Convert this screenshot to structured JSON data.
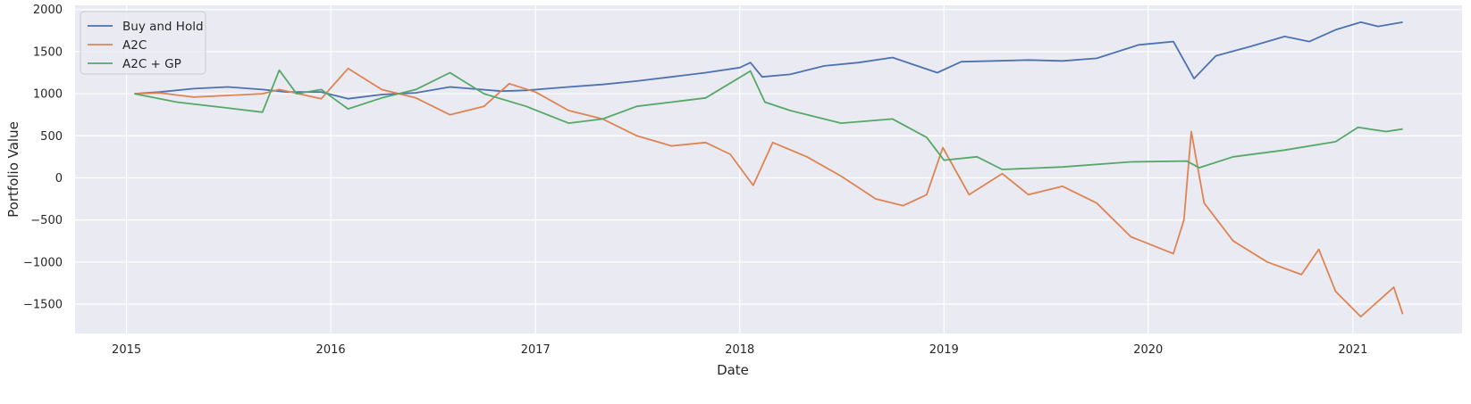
{
  "chart_data": {
    "type": "line",
    "title": "",
    "xlabel": "Date",
    "ylabel": "Portfolio Value",
    "xlim": [
      "2014-10-01",
      "2021-07-15"
    ],
    "ylim": [
      -1850,
      2050
    ],
    "x_ticks": [
      "2015",
      "2016",
      "2017",
      "2018",
      "2019",
      "2020",
      "2021"
    ],
    "y_ticks": [
      2000,
      1500,
      1000,
      500,
      0,
      -500,
      -1000,
      -1500
    ],
    "grid": true,
    "legend_position": "top-left",
    "series": [
      {
        "name": "Buy and Hold",
        "color": "#4c72b0",
        "points": [
          [
            "2015-01-15",
            1000
          ],
          [
            "2015-03-01",
            1020
          ],
          [
            "2015-05-01",
            1060
          ],
          [
            "2015-07-01",
            1080
          ],
          [
            "2015-09-01",
            1050
          ],
          [
            "2015-10-15",
            1020
          ],
          [
            "2015-12-15",
            1020
          ],
          [
            "2016-02-01",
            940
          ],
          [
            "2016-04-01",
            990
          ],
          [
            "2016-06-01",
            1010
          ],
          [
            "2016-08-01",
            1080
          ],
          [
            "2016-11-01",
            1030
          ],
          [
            "2016-12-15",
            1040
          ],
          [
            "2017-03-01",
            1080
          ],
          [
            "2017-05-01",
            1110
          ],
          [
            "2017-07-01",
            1150
          ],
          [
            "2017-09-01",
            1200
          ],
          [
            "2017-11-01",
            1250
          ],
          [
            "2018-01-01",
            1310
          ],
          [
            "2018-01-20",
            1370
          ],
          [
            "2018-02-10",
            1200
          ],
          [
            "2018-04-01",
            1230
          ],
          [
            "2018-06-01",
            1330
          ],
          [
            "2018-08-01",
            1370
          ],
          [
            "2018-10-01",
            1430
          ],
          [
            "2018-12-20",
            1250
          ],
          [
            "2019-02-01",
            1380
          ],
          [
            "2019-04-01",
            1390
          ],
          [
            "2019-06-01",
            1400
          ],
          [
            "2019-08-01",
            1390
          ],
          [
            "2019-10-01",
            1420
          ],
          [
            "2019-12-15",
            1580
          ],
          [
            "2020-02-15",
            1620
          ],
          [
            "2020-03-23",
            1180
          ],
          [
            "2020-05-01",
            1450
          ],
          [
            "2020-07-01",
            1560
          ],
          [
            "2020-09-01",
            1680
          ],
          [
            "2020-10-15",
            1620
          ],
          [
            "2020-12-01",
            1760
          ],
          [
            "2021-01-15",
            1850
          ],
          [
            "2021-02-15",
            1800
          ],
          [
            "2021-03-31",
            1850
          ]
        ]
      },
      {
        "name": "A2C",
        "color": "#dd8452",
        "points": [
          [
            "2015-01-15",
            1000
          ],
          [
            "2015-03-01",
            1010
          ],
          [
            "2015-05-01",
            960
          ],
          [
            "2015-07-01",
            980
          ],
          [
            "2015-09-01",
            1000
          ],
          [
            "2015-10-01",
            1050
          ],
          [
            "2015-12-15",
            940
          ],
          [
            "2016-02-01",
            1300
          ],
          [
            "2016-04-01",
            1050
          ],
          [
            "2016-06-01",
            950
          ],
          [
            "2016-08-01",
            750
          ],
          [
            "2016-10-01",
            850
          ],
          [
            "2016-11-15",
            1120
          ],
          [
            "2017-01-01",
            1020
          ],
          [
            "2017-03-01",
            800
          ],
          [
            "2017-05-01",
            700
          ],
          [
            "2017-07-01",
            500
          ],
          [
            "2017-09-01",
            380
          ],
          [
            "2017-11-01",
            420
          ],
          [
            "2017-12-15",
            280
          ],
          [
            "2018-01-25",
            -90
          ],
          [
            "2018-03-01",
            420
          ],
          [
            "2018-05-01",
            250
          ],
          [
            "2018-07-01",
            20
          ],
          [
            "2018-09-01",
            -250
          ],
          [
            "2018-10-20",
            -330
          ],
          [
            "2018-12-01",
            -200
          ],
          [
            "2018-12-30",
            360
          ],
          [
            "2019-02-15",
            -200
          ],
          [
            "2019-04-15",
            50
          ],
          [
            "2019-06-01",
            -200
          ],
          [
            "2019-08-01",
            -100
          ],
          [
            "2019-10-01",
            -300
          ],
          [
            "2019-12-01",
            -700
          ],
          [
            "2020-02-15",
            -900
          ],
          [
            "2020-03-05",
            -500
          ],
          [
            "2020-03-18",
            550
          ],
          [
            "2020-04-10",
            -300
          ],
          [
            "2020-06-01",
            -750
          ],
          [
            "2020-08-01",
            -1000
          ],
          [
            "2020-10-01",
            -1150
          ],
          [
            "2020-11-01",
            -850
          ],
          [
            "2020-12-01",
            -1350
          ],
          [
            "2021-01-15",
            -1650
          ],
          [
            "2021-03-15",
            -1300
          ],
          [
            "2021-03-31",
            -1620
          ]
        ]
      },
      {
        "name": "A2C + GP",
        "color": "#55a868",
        "points": [
          [
            "2015-01-15",
            1000
          ],
          [
            "2015-04-01",
            900
          ],
          [
            "2015-07-01",
            830
          ],
          [
            "2015-09-01",
            780
          ],
          [
            "2015-10-01",
            1280
          ],
          [
            "2015-11-01",
            1000
          ],
          [
            "2015-12-15",
            1050
          ],
          [
            "2016-02-01",
            820
          ],
          [
            "2016-04-01",
            950
          ],
          [
            "2016-06-01",
            1050
          ],
          [
            "2016-08-01",
            1250
          ],
          [
            "2016-10-01",
            1000
          ],
          [
            "2016-12-15",
            850
          ],
          [
            "2017-03-01",
            650
          ],
          [
            "2017-05-01",
            700
          ],
          [
            "2017-07-01",
            850
          ],
          [
            "2017-09-01",
            900
          ],
          [
            "2017-11-01",
            950
          ],
          [
            "2018-01-20",
            1270
          ],
          [
            "2018-02-15",
            900
          ],
          [
            "2018-04-01",
            800
          ],
          [
            "2018-07-01",
            650
          ],
          [
            "2018-10-01",
            700
          ],
          [
            "2018-12-01",
            480
          ],
          [
            "2019-01-01",
            210
          ],
          [
            "2019-03-01",
            250
          ],
          [
            "2019-04-15",
            100
          ],
          [
            "2019-08-01",
            130
          ],
          [
            "2019-12-01",
            190
          ],
          [
            "2020-03-10",
            200
          ],
          [
            "2020-04-01",
            120
          ],
          [
            "2020-06-01",
            250
          ],
          [
            "2020-09-01",
            330
          ],
          [
            "2020-12-01",
            430
          ],
          [
            "2021-01-10",
            600
          ],
          [
            "2021-03-01",
            550
          ],
          [
            "2021-03-31",
            580
          ]
        ]
      }
    ]
  }
}
